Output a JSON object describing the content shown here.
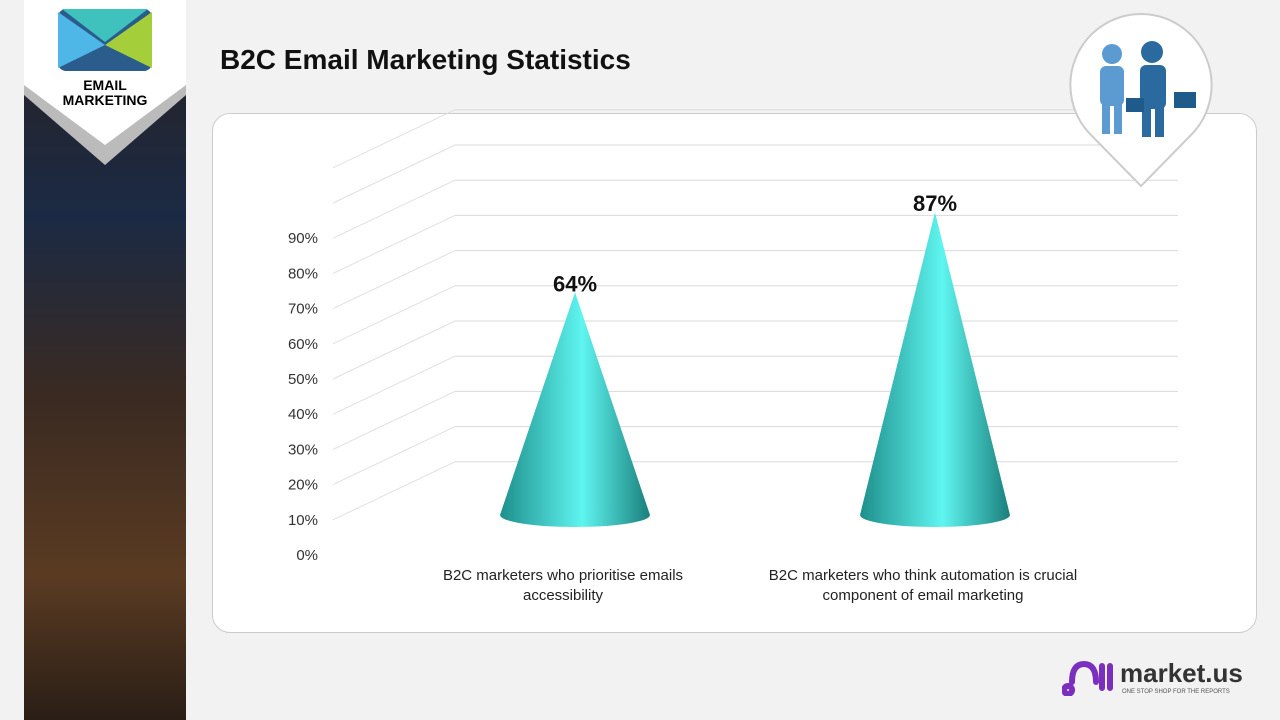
{
  "header": {
    "title": "B2C Email Marketing Statistics"
  },
  "badge": {
    "line1": "EMAIL",
    "line2": "MARKETING"
  },
  "logo": {
    "name": "market.us",
    "tagline": "ONE STOP SHOP FOR THE REPORTS"
  },
  "colors": {
    "cone": "#3fd6d0",
    "accent": "#7b2fbf"
  },
  "chart_data": {
    "type": "bar",
    "shape": "3d-cone",
    "categories": [
      "B2C marketers who prioritise emails accessibility",
      "B2C marketers who think automation is crucial component of email marketing"
    ],
    "values": [
      64,
      87
    ],
    "data_labels": [
      "64%",
      "87%"
    ],
    "yticks": [
      "0%",
      "10%",
      "20%",
      "30%",
      "40%",
      "50%",
      "60%",
      "70%",
      "80%",
      "90%"
    ],
    "ylim": [
      0,
      100
    ],
    "grid": true
  }
}
